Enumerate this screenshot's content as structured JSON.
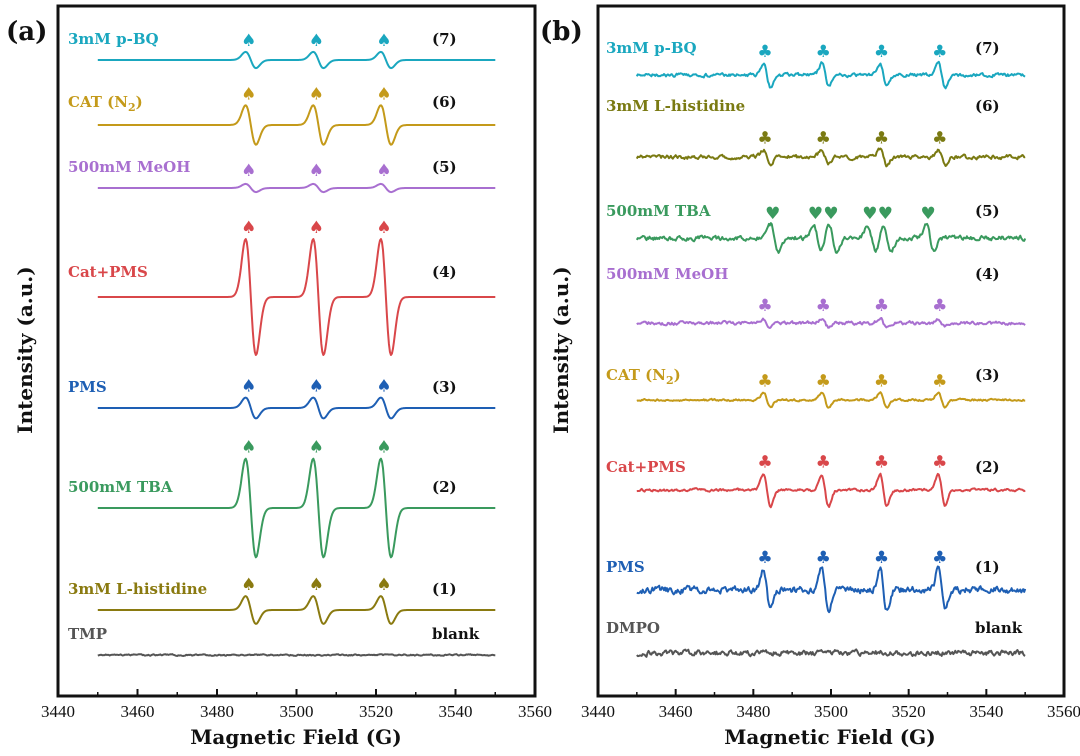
{
  "chart_data": [
    {
      "panel": "(a)",
      "type": "line",
      "xlabel": "Magnetic Field (G)",
      "ylabel": "Intensity (a.u.)",
      "xlim": [
        3440,
        3560
      ],
      "xticks": [
        3440,
        3460,
        3480,
        3500,
        3520,
        3540,
        3560
      ],
      "marker_glyph": "♠",
      "series": [
        {
          "name": "3mM p-BQ",
          "number": "(7)",
          "color": "#1aa7bf",
          "amp": 0.14,
          "peaks": [
            3488.5,
            3505.5,
            3522.5
          ],
          "width": 1.3,
          "markers": [
            3488,
            3505,
            3522
          ],
          "noise": 0.0
        },
        {
          "name": "CAT (N2)",
          "number": "(6)",
          "color": "#c49a1a",
          "amp": 0.34,
          "peaks": [
            3488.5,
            3505.5,
            3522.5
          ],
          "width": 1.3,
          "markers": [
            3488,
            3505,
            3522
          ],
          "noise": 0.0
        },
        {
          "name": "500mM MeOH",
          "number": "(5)",
          "color": "#a86fd0",
          "amp": 0.07,
          "peaks": [
            3488.5,
            3505.5,
            3522.5
          ],
          "width": 1.3,
          "markers": [
            3488,
            3505,
            3522
          ],
          "noise": 0.0
        },
        {
          "name": "Cat+PMS",
          "number": "(4)",
          "color": "#d9474a",
          "amp": 1.0,
          "peaks": [
            3488.5,
            3505.5,
            3522.5
          ],
          "width": 1.3,
          "markers": [
            3488,
            3505,
            3522
          ],
          "noise": 0.0
        },
        {
          "name": "PMS",
          "number": "(3)",
          "color": "#1e5fb4",
          "amp": 0.18,
          "peaks": [
            3488.5,
            3505.5,
            3522.5
          ],
          "width": 1.3,
          "markers": [
            3488,
            3505,
            3522
          ],
          "noise": 0.0
        },
        {
          "name": "500mM TBA",
          "number": "(2)",
          "color": "#3a9a5e",
          "amp": 0.85,
          "peaks": [
            3488.5,
            3505.5,
            3522.5
          ],
          "width": 1.3,
          "markers": [
            3488,
            3505,
            3522
          ],
          "noise": 0.0
        },
        {
          "name": "3mM L-histidine",
          "number": "(1)",
          "color": "#8a7a10",
          "amp": 0.24,
          "peaks": [
            3488.5,
            3505.5,
            3522.5
          ],
          "width": 1.3,
          "markers": [
            3488,
            3505,
            3522
          ],
          "noise": 0.0
        },
        {
          "name": "TMP",
          "number": "blank",
          "color": "#555555",
          "amp": 0.0,
          "peaks": [],
          "width": 1.3,
          "markers": [],
          "noise": 0.01
        }
      ]
    },
    {
      "panel": "(b)",
      "type": "line",
      "xlabel": "Magnetic Field (G)",
      "ylabel": "Intensity (a.u.)",
      "xlim": [
        3440,
        3560
      ],
      "xticks": [
        3440,
        3460,
        3480,
        3500,
        3520,
        3540,
        3560
      ],
      "marker_glyph": "♣",
      "series": [
        {
          "name": "3mM p-BQ",
          "number": "(7)",
          "color": "#1aa7bf",
          "amp": 0.22,
          "peaks": [
            3483.5,
            3498.5,
            3513.5,
            3528.5
          ],
          "width": 0.9,
          "markers": [
            3483,
            3498,
            3513,
            3528
          ],
          "noise": 0.025,
          "glyph": "♣"
        },
        {
          "name": "3mM L-histidine",
          "number": "(6)",
          "color": "#7a7a12",
          "amp": 0.14,
          "peaks": [
            3483.5,
            3498.5,
            3513.5,
            3528.5
          ],
          "width": 0.9,
          "markers": [
            3483,
            3498,
            3513,
            3528
          ],
          "noise": 0.03,
          "glyph": "♣"
        },
        {
          "name": "500mM TBA",
          "number": "(5)",
          "color": "#3a9a5e",
          "amp": 0.24,
          "peaks": [
            3485.5,
            3496.5,
            3500.5,
            3510.5,
            3514.5,
            3525.5
          ],
          "width": 1.0,
          "markers": [
            3485,
            3496,
            3500,
            3510,
            3514,
            3525
          ],
          "noise": 0.035,
          "glyph": "♥"
        },
        {
          "name": "500mM MeOH",
          "number": "(4)",
          "color": "#a86fd0",
          "amp": 0.08,
          "peaks": [
            3483.5,
            3498.5,
            3513.5,
            3528.5
          ],
          "width": 0.9,
          "markers": [
            3483,
            3498,
            3513,
            3528
          ],
          "noise": 0.025,
          "glyph": "♣"
        },
        {
          "name": "CAT (N2)",
          "number": "(3)",
          "color": "#c49a1a",
          "amp": 0.14,
          "peaks": [
            3483.5,
            3498.5,
            3513.5,
            3528.5
          ],
          "width": 0.9,
          "markers": [
            3483,
            3498,
            3513,
            3528
          ],
          "noise": 0.015,
          "glyph": "♣"
        },
        {
          "name": "Cat+PMS",
          "number": "(2)",
          "color": "#d9474a",
          "amp": 0.3,
          "peaks": [
            3483.5,
            3498.5,
            3513.5,
            3528.5
          ],
          "width": 0.9,
          "markers": [
            3483,
            3498,
            3513,
            3528
          ],
          "noise": 0.02,
          "glyph": "♣"
        },
        {
          "name": "PMS",
          "number": "(1)",
          "color": "#1e5fb4",
          "amp": 0.38,
          "peaks": [
            3483.5,
            3498.5,
            3513.5,
            3528.5
          ],
          "width": 0.9,
          "markers": [
            3483,
            3498,
            3513,
            3528
          ],
          "noise": 0.05,
          "glyph": "♣"
        },
        {
          "name": "DMPO",
          "number": "blank",
          "color": "#555555",
          "amp": 0.0,
          "peaks": [],
          "width": 0.9,
          "markers": [],
          "noise": 0.04,
          "glyph": "♣"
        }
      ]
    }
  ]
}
